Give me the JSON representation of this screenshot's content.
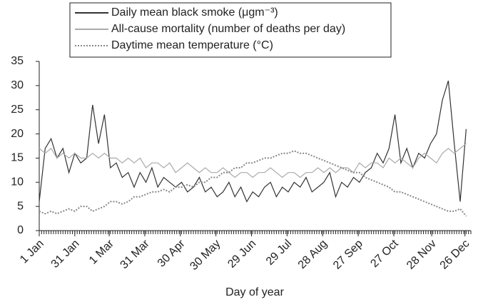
{
  "chart_data": {
    "type": "line",
    "x_label": "Day of year",
    "x": [
      1,
      6,
      11,
      16,
      21,
      26,
      31,
      36,
      41,
      46,
      51,
      56,
      61,
      66,
      71,
      76,
      81,
      86,
      91,
      96,
      101,
      106,
      111,
      116,
      121,
      126,
      131,
      136,
      141,
      146,
      151,
      156,
      161,
      166,
      171,
      176,
      181,
      186,
      191,
      196,
      201,
      206,
      211,
      216,
      221,
      226,
      231,
      236,
      241,
      246,
      251,
      256,
      261,
      266,
      271,
      276,
      281,
      286,
      291,
      296,
      301,
      306,
      311,
      316,
      321,
      326,
      331,
      336,
      341,
      346,
      351,
      356,
      361
    ],
    "series": [
      {
        "name": "Daily mean black smoke (μgm⁻³)",
        "color": "#333333",
        "style": "solid",
        "values": [
          6,
          17,
          19,
          15,
          17,
          12,
          16,
          14,
          15,
          26,
          18,
          24,
          13,
          14,
          11,
          12,
          9,
          12,
          10,
          13,
          9,
          11,
          10,
          9,
          10,
          8,
          9,
          11,
          8,
          9,
          7,
          8,
          10,
          7,
          9,
          6,
          8,
          7,
          9,
          10,
          7,
          9,
          8,
          10,
          9,
          11,
          8,
          9,
          10,
          12,
          7,
          10,
          9,
          11,
          10,
          12,
          13,
          16,
          14,
          17,
          24,
          14,
          17,
          13,
          16,
          15,
          18,
          20,
          27,
          31,
          18,
          6,
          21
        ]
      },
      {
        "name": "All-cause mortality (number of deaths per day)",
        "color": "#aaaaaa",
        "style": "solid",
        "values": [
          17,
          16,
          17,
          15,
          16,
          15,
          16,
          15,
          15,
          16,
          15,
          16,
          15,
          15,
          14,
          15,
          14,
          15,
          13,
          14,
          14,
          13,
          14,
          12,
          13,
          14,
          13,
          12,
          13,
          12,
          12,
          13,
          12,
          11,
          12,
          12,
          11,
          12,
          12,
          13,
          12,
          11,
          12,
          12,
          11,
          12,
          12,
          13,
          12,
          13,
          12,
          13,
          13,
          12,
          14,
          13,
          14,
          14,
          13,
          15,
          14,
          15,
          14,
          13,
          15,
          16,
          15,
          14,
          16,
          17,
          16,
          17,
          18
        ]
      },
      {
        "name": "Daytime mean temperature (°C)",
        "color": "#888888",
        "style": "dotted",
        "values": [
          4,
          3.5,
          4,
          3.5,
          4,
          4.5,
          4,
          5,
          5,
          4,
          4.5,
          5,
          6,
          6,
          5.5,
          6,
          7,
          7,
          7.5,
          8,
          8,
          8.5,
          8,
          9,
          9,
          9.5,
          9,
          10,
          10,
          11,
          11,
          12,
          12,
          13,
          13,
          14,
          14,
          14.5,
          15,
          15,
          15.5,
          16,
          16,
          16.5,
          16,
          16,
          15.5,
          15,
          14.5,
          14,
          13.5,
          13,
          12.5,
          12,
          12,
          11,
          10.5,
          10,
          9.5,
          9,
          8,
          8,
          7.5,
          7,
          6.5,
          6,
          5.5,
          5,
          4.5,
          4,
          4,
          4.5,
          3
        ]
      }
    ],
    "xlim": [
      1,
      365
    ],
    "xticks": [
      {
        "value": 1,
        "label": "1 Jan"
      },
      {
        "value": 31,
        "label": "31 Jan"
      },
      {
        "value": 60,
        "label": "1 Mar"
      },
      {
        "value": 90,
        "label": "31 Mar"
      },
      {
        "value": 120,
        "label": "30 Apr"
      },
      {
        "value": 150,
        "label": "30 May"
      },
      {
        "value": 180,
        "label": "29 Jun"
      },
      {
        "value": 210,
        "label": "29 Jul"
      },
      {
        "value": 240,
        "label": "28 Aug"
      },
      {
        "value": 270,
        "label": "27 Sep"
      },
      {
        "value": 300,
        "label": "27 Oct"
      },
      {
        "value": 332,
        "label": "28 Nov"
      },
      {
        "value": 360,
        "label": "26 Dec"
      }
    ],
    "ylim": [
      0,
      35
    ],
    "yticks": [
      0,
      5,
      10,
      15,
      20,
      25,
      30,
      35
    ],
    "legend": "top"
  }
}
